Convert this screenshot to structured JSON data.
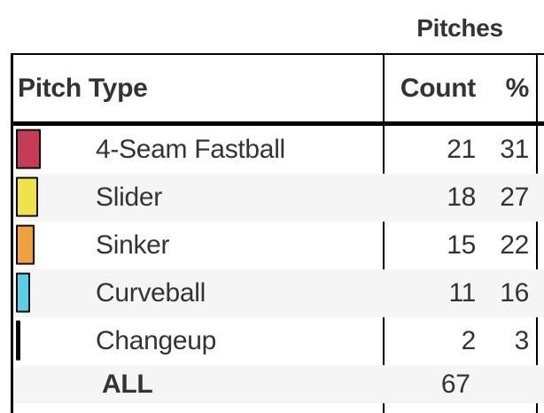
{
  "section": {
    "title": "Pitches"
  },
  "table": {
    "header": {
      "pitch_type": "Pitch Type",
      "count": "Count",
      "pct": "%"
    },
    "rows": [
      {
        "name": "4-Seam Fastball",
        "count": 21,
        "pct": 31,
        "color": "#C33D55"
      },
      {
        "name": "Slider",
        "count": 18,
        "pct": 27,
        "color": "#EDE44C"
      },
      {
        "name": "Sinker",
        "count": 15,
        "pct": 22,
        "color": "#EFA23B"
      },
      {
        "name": "Curveball",
        "count": 11,
        "pct": 16,
        "color": "#5BCDE4"
      },
      {
        "name": "Changeup",
        "count": 2,
        "pct": 3,
        "color": "#000000"
      }
    ],
    "total_row": {
      "label": "ALL",
      "count": 67
    }
  },
  "chart_data": {
    "type": "table",
    "title": "Pitches",
    "columns": [
      "Pitch Type",
      "Count",
      "%"
    ],
    "rows": [
      [
        "4-Seam Fastball",
        21,
        31
      ],
      [
        "Slider",
        18,
        27
      ],
      [
        "Sinker",
        15,
        22
      ],
      [
        "Curveball",
        11,
        16
      ],
      [
        "Changeup",
        2,
        3
      ],
      [
        "ALL",
        67,
        null
      ]
    ],
    "swatch_colors": [
      "#C33D55",
      "#EDE44C",
      "#EFA23B",
      "#5BCDE4",
      "#000000"
    ]
  }
}
